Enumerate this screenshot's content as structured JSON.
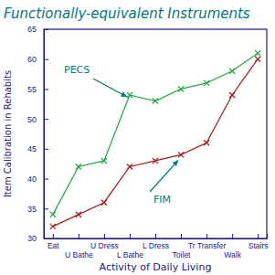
{
  "chart_data": {
    "type": "line",
    "title": "Functionally-equivalent Instruments",
    "x_label": "Activity of Daily Living",
    "y_label": "Item Calibration in Rehabits",
    "categories": [
      "Eat",
      "U Bathe",
      "U Dress",
      "L Bathe",
      "L Dress",
      "Toilet",
      "Tr Transfer",
      "Walk",
      "Stairs"
    ],
    "series": [
      {
        "name": "PECS",
        "color": "#2aa84a",
        "marker": "x",
        "values": [
          34,
          42,
          43,
          54,
          53,
          55,
          56,
          58,
          61
        ]
      },
      {
        "name": "FIM",
        "color": "#a82020",
        "marker": "x",
        "values": [
          32,
          34,
          36,
          42,
          43,
          44,
          46,
          54,
          60
        ]
      }
    ],
    "ylim": [
      30,
      65
    ],
    "yticks": [
      30,
      35,
      40,
      45,
      50,
      55,
      60,
      65
    ],
    "grid": false
  }
}
